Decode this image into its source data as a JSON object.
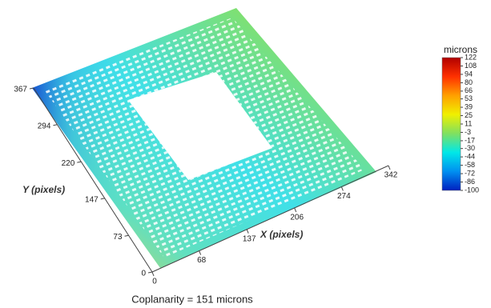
{
  "chart_data": {
    "type": "surface",
    "caption": "Coplanarity = 151 microns",
    "xlabel": "X (pixels)",
    "ylabel": "Y (pixels)",
    "xlim": [
      0,
      342
    ],
    "ylim": [
      0,
      367
    ],
    "xticks": [
      0,
      68,
      137,
      206,
      274,
      342
    ],
    "yticks": [
      0,
      73,
      147,
      220,
      294,
      367
    ],
    "colorbar": {
      "title": "microns",
      "lim": [
        -100,
        122
      ],
      "ticks": [
        122,
        108,
        94,
        80,
        66,
        53,
        39,
        25,
        11,
        -3,
        -17,
        -30,
        -44,
        -58,
        -72,
        -86,
        -100
      ],
      "colors": [
        "#b00000",
        "#ff3000",
        "#ffa000",
        "#f0f000",
        "#80e060",
        "#00e8e8",
        "#0090f0",
        "#0020c0"
      ]
    }
  }
}
